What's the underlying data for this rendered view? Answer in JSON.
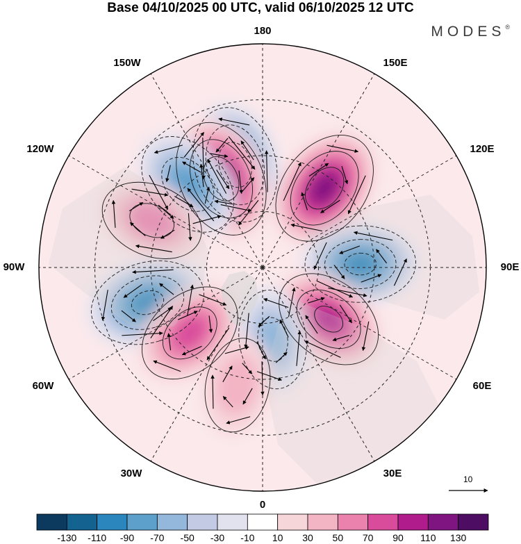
{
  "title": "Base 04/10/2025 00 UTC, valid 06/10/2025 12 UTC",
  "brand": "MODES",
  "brand_mark": "®",
  "longitude_labels": {
    "lon_180": "180",
    "lon_150e": "150E",
    "lon_120e": "120E",
    "lon_90e": "90E",
    "lon_60e": "60E",
    "lon_30e": "30E",
    "lon_0": "0",
    "lon_30w": "30W",
    "lon_60w": "60W",
    "lon_90w": "90W",
    "lon_120w": "120W",
    "lon_150w": "150W"
  },
  "reference_vector": {
    "value": "10"
  },
  "colorbar": {
    "ticks": [
      "-130",
      "-110",
      "-90",
      "-70",
      "-50",
      "-30",
      "-10",
      "10",
      "30",
      "50",
      "70",
      "90",
      "110",
      "130"
    ],
    "colors": [
      "#0b3a5e",
      "#13628f",
      "#2b86bd",
      "#5ea0cc",
      "#93b8db",
      "#c2cbe3",
      "#e2e2ef",
      "#ffffff",
      "#f7d6da",
      "#f3b4c4",
      "#eb81ad",
      "#d94b9b",
      "#b01c8b",
      "#7e1581",
      "#4c0d62"
    ]
  },
  "anomaly_centers": [
    {
      "name": "low-150W-high-lat",
      "lon": -165,
      "colat": 38,
      "value": -120
    },
    {
      "name": "high-150W",
      "lon": -155,
      "colat": 35,
      "value": 125
    },
    {
      "name": "low-120W",
      "lon": -138,
      "colat": 40,
      "value": -95
    },
    {
      "name": "high-90W",
      "lon": -113,
      "colat": 43,
      "value": 75
    },
    {
      "name": "low-60W",
      "lon": -73,
      "colat": 43,
      "value": -115
    },
    {
      "name": "high-45W",
      "lon": -48,
      "colat": 35,
      "value": 95
    },
    {
      "name": "high-150E",
      "lon": 142,
      "colat": 36,
      "value": 125
    },
    {
      "name": "low-90E",
      "lon": 92,
      "colat": 35,
      "value": -100
    },
    {
      "name": "high-60E",
      "lon": 52,
      "colat": 30,
      "value": 100
    },
    {
      "name": "low-20E",
      "lon": 8,
      "colat": 26,
      "value": -60
    },
    {
      "name": "high-15W",
      "lon": -12,
      "colat": 43,
      "value": 45
    }
  ]
}
